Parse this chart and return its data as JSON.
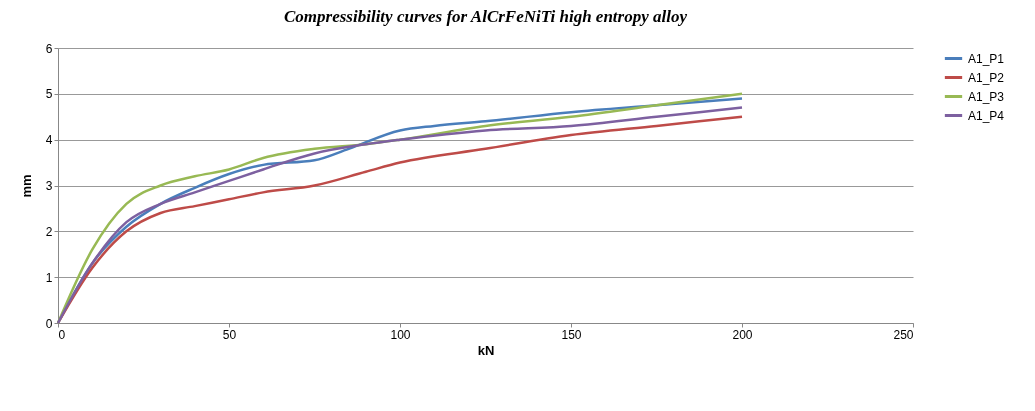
{
  "chart_data": {
    "type": "line",
    "title": "Compressibility curves for AlCrFeNiTi high entropy alloy",
    "xlabel": "kN",
    "ylabel": "mm",
    "xlim": [
      0,
      250
    ],
    "xticks": [
      0,
      50,
      100,
      150,
      200,
      250
    ],
    "ylim": [
      0,
      6
    ],
    "yticks": [
      0,
      1,
      2,
      3,
      4,
      5,
      6
    ],
    "grid": "y",
    "legend": "right",
    "marker": "none",
    "line_style": "solid",
    "series": [
      {
        "name": "A1_P1",
        "color": "#4a7ebb",
        "x": [
          0,
          10,
          20,
          30,
          40,
          50,
          60,
          75,
          85,
          100,
          110,
          125,
          150,
          175,
          200
        ],
        "values": [
          0,
          1.3,
          2.1,
          2.6,
          2.95,
          3.25,
          3.45,
          3.55,
          3.8,
          4.2,
          4.3,
          4.4,
          4.6,
          4.75,
          4.9
        ]
      },
      {
        "name": "A1_P2",
        "color": "#be4b48",
        "x": [
          0,
          10,
          20,
          30,
          40,
          50,
          60,
          75,
          90,
          100,
          125,
          150,
          175,
          200
        ],
        "values": [
          0,
          1.2,
          2.0,
          2.4,
          2.55,
          2.7,
          2.85,
          3.0,
          3.3,
          3.5,
          3.8,
          4.1,
          4.3,
          4.5
        ]
      },
      {
        "name": "A1_P3",
        "color": "#98b954",
        "x": [
          0,
          10,
          20,
          30,
          40,
          50,
          60,
          75,
          90,
          100,
          125,
          150,
          175,
          200
        ],
        "values": [
          0,
          1.6,
          2.6,
          3.0,
          3.2,
          3.35,
          3.6,
          3.8,
          3.9,
          4.0,
          4.3,
          4.5,
          4.75,
          5.0
        ]
      },
      {
        "name": "A1_P4",
        "color": "#7d60a0",
        "x": [
          0,
          10,
          20,
          30,
          40,
          50,
          60,
          75,
          90,
          100,
          125,
          150,
          175,
          200
        ],
        "values": [
          0,
          1.3,
          2.2,
          2.6,
          2.85,
          3.1,
          3.35,
          3.7,
          3.9,
          4.0,
          4.2,
          4.3,
          4.5,
          4.7
        ]
      }
    ]
  }
}
